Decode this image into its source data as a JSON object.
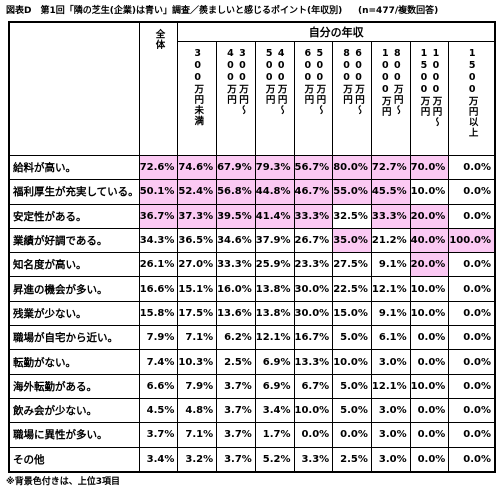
{
  "header": {
    "title": "図表D　第1回「隣の芝生(企業)は青い」調査／羨ましいと感じるポイント(年収別)",
    "sample": "(n=477/複数回答)"
  },
  "table": {
    "group_header": "自分の年収",
    "columns": [
      "全体",
      "300万円未満",
      "300万円～400万円",
      "400万円～500万円",
      "500万円～600万円",
      "600万円～800万円",
      "800万円～1000万円",
      "1000万円～1500万円",
      "1500万円以上"
    ],
    "rows": [
      [
        "給料が高い。",
        "72.6%",
        "74.6%",
        "67.9%",
        "79.3%",
        "56.7%",
        "80.0%",
        "72.7%",
        "70.0%",
        "0.0%"
      ],
      [
        "福利厚生が充実している。",
        "50.1%",
        "52.4%",
        "56.8%",
        "44.8%",
        "46.7%",
        "55.0%",
        "45.5%",
        "10.0%",
        "0.0%"
      ],
      [
        "安定性がある。",
        "36.7%",
        "37.3%",
        "39.5%",
        "41.4%",
        "33.3%",
        "32.5%",
        "33.3%",
        "20.0%",
        "0.0%"
      ],
      [
        "業績が好調である。",
        "34.3%",
        "36.5%",
        "34.6%",
        "37.9%",
        "26.7%",
        "35.0%",
        "21.2%",
        "40.0%",
        "100.0%"
      ],
      [
        "知名度が高い。",
        "26.1%",
        "27.0%",
        "33.3%",
        "25.9%",
        "23.3%",
        "27.5%",
        "9.1%",
        "20.0%",
        "0.0%"
      ],
      [
        "昇進の機会が多い。",
        "16.6%",
        "15.1%",
        "16.0%",
        "13.8%",
        "30.0%",
        "22.5%",
        "12.1%",
        "10.0%",
        "0.0%"
      ],
      [
        "残業が少ない。",
        "15.8%",
        "17.5%",
        "13.6%",
        "13.8%",
        "30.0%",
        "15.0%",
        "9.1%",
        "10.0%",
        "0.0%"
      ],
      [
        "職場が自宅から近い。",
        "7.9%",
        "7.1%",
        "6.2%",
        "12.1%",
        "16.7%",
        "5.0%",
        "6.1%",
        "0.0%",
        "0.0%"
      ],
      [
        "転勤がない。",
        "7.4%",
        "10.3%",
        "2.5%",
        "6.9%",
        "13.3%",
        "10.0%",
        "3.0%",
        "0.0%",
        "0.0%"
      ],
      [
        "海外転勤がある。",
        "6.6%",
        "7.9%",
        "3.7%",
        "6.9%",
        "6.7%",
        "5.0%",
        "12.1%",
        "10.0%",
        "0.0%"
      ],
      [
        "飲み会が少ない。",
        "4.5%",
        "4.8%",
        "3.7%",
        "3.4%",
        "10.0%",
        "5.0%",
        "3.0%",
        "0.0%",
        "0.0%"
      ],
      [
        "職場に異性が多い。",
        "3.7%",
        "7.1%",
        "3.7%",
        "1.7%",
        "0.0%",
        "0.0%",
        "3.0%",
        "0.0%",
        "0.0%"
      ],
      [
        "その他",
        "3.4%",
        "3.2%",
        "3.7%",
        "5.2%",
        "3.3%",
        "2.5%",
        "3.0%",
        "0.0%",
        "0.0%"
      ]
    ],
    "highlight": [
      [
        0,
        1
      ],
      [
        1,
        1
      ],
      [
        2,
        1
      ],
      [
        0,
        2
      ],
      [
        1,
        2
      ],
      [
        2,
        2
      ],
      [
        0,
        3
      ],
      [
        1,
        3
      ],
      [
        2,
        3
      ],
      [
        0,
        4
      ],
      [
        1,
        4
      ],
      [
        2,
        4
      ],
      [
        0,
        5
      ],
      [
        1,
        5
      ],
      [
        2,
        5
      ],
      [
        0,
        6
      ],
      [
        1,
        6
      ],
      [
        3,
        6
      ],
      [
        0,
        7
      ],
      [
        1,
        7
      ],
      [
        2,
        7
      ],
      [
        0,
        8
      ],
      [
        3,
        8
      ],
      [
        2,
        8
      ],
      [
        4,
        8
      ],
      [
        3,
        9
      ]
    ],
    "highlight_color": "#fbc9f3"
  },
  "footer": {
    "note": "※背景色付きは、上位3項目"
  }
}
